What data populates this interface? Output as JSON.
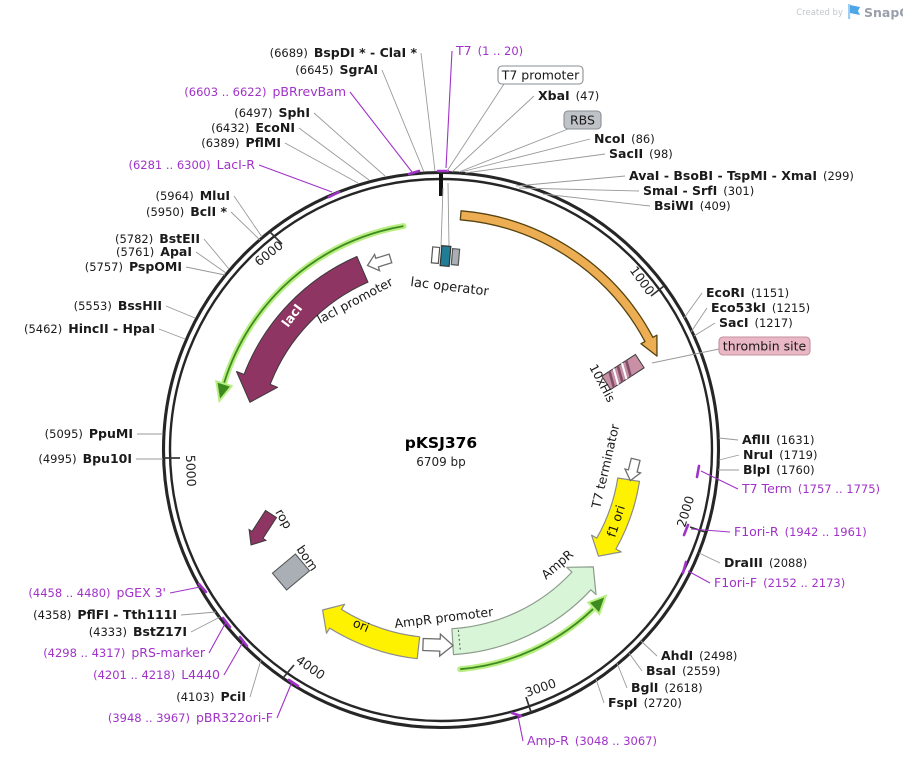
{
  "watermark": {
    "created_by": "Created by",
    "brand": "SnapGene"
  },
  "plasmid": {
    "name": "pKSJ376",
    "size_label": "6709 bp"
  },
  "colors": {
    "purple_primer": "#A032C8",
    "enzyme_text": "#1a1a1a",
    "leader": "#999999",
    "maroon": "#8E3563",
    "orange_fill": "#EDAE53",
    "orange_stroke": "#56430F",
    "yellow": "#FFF200",
    "yellow_stroke": "#8C8C8C",
    "mint_fill": "#D8F5D8",
    "mint_stroke": "#8C9C8C",
    "green_core": "#3D8B1F",
    "green_glow": "#B9EE83",
    "his_pink": "#C88FA5",
    "his_stripe": "#7E4E66",
    "thrombin_bg": "#EAB8C5",
    "thrombin_border": "#C48FA0",
    "rbs_bg": "#BFC3C7",
    "box_border": "#8A8F94",
    "gray_feature": "#A9AFB5",
    "ring": "#262626",
    "teal_box": "#1F7E95"
  },
  "ticks": [
    {
      "label": "1000"
    },
    {
      "label": "2000"
    },
    {
      "label": "3000"
    },
    {
      "label": "4000"
    },
    {
      "label": "5000"
    },
    {
      "label": "6000"
    }
  ],
  "boxes": [
    {
      "id": "t7_promoter",
      "label": "T7 promoter"
    },
    {
      "id": "rbs",
      "label": "RBS"
    },
    {
      "id": "thrombin",
      "label": "thrombin site"
    }
  ],
  "features": [
    {
      "id": "lac_operator",
      "label": "lac operator"
    },
    {
      "id": "laci_promoter",
      "label": "lacI promoter"
    },
    {
      "id": "laci",
      "label": "lacI"
    },
    {
      "id": "his",
      "label": "10xHis"
    },
    {
      "id": "t7_terminator",
      "label": "T7 terminator"
    },
    {
      "id": "f1_ori",
      "label": "f1 ori"
    },
    {
      "id": "ampr",
      "label": "AmpR"
    },
    {
      "id": "ampr_promoter",
      "label": "AmpR promoter"
    },
    {
      "id": "ori",
      "label": "ori"
    },
    {
      "id": "rop",
      "label": "rop"
    },
    {
      "id": "bom",
      "label": "bom"
    }
  ],
  "sites": [
    {
      "id": "bspdi",
      "pos": "(6689)",
      "name": "BspDI * - ClaI *",
      "kind": "enzyme",
      "side": "left"
    },
    {
      "id": "sgrai",
      "pos": "(6645)",
      "name": "SgrAI",
      "kind": "enzyme",
      "side": "left"
    },
    {
      "id": "pbrrevbam",
      "pos": "(6603 .. 6622)",
      "name": "pBRrevBam",
      "kind": "primer",
      "side": "left"
    },
    {
      "id": "sphi",
      "pos": "(6497)",
      "name": "SphI",
      "kind": "enzyme",
      "side": "left"
    },
    {
      "id": "econi",
      "pos": "(6432)",
      "name": "EcoNI",
      "kind": "enzyme",
      "side": "left"
    },
    {
      "id": "pflmi",
      "pos": "(6389)",
      "name": "PflMI",
      "kind": "enzyme",
      "side": "left"
    },
    {
      "id": "lacir",
      "pos": "(6281 .. 6300)",
      "name": "LacI-R",
      "kind": "primer",
      "side": "left"
    },
    {
      "id": "mlui",
      "pos": "(5964)",
      "name": "MluI",
      "kind": "enzyme",
      "side": "left"
    },
    {
      "id": "bcli",
      "pos": "(5950)",
      "name": "BclI *",
      "kind": "enzyme",
      "side": "left"
    },
    {
      "id": "bsteii",
      "pos": "(5782)",
      "name": "BstEII",
      "kind": "enzyme",
      "side": "left"
    },
    {
      "id": "apai",
      "pos": "(5761)",
      "name": "ApaI",
      "kind": "enzyme",
      "side": "left"
    },
    {
      "id": "pspomi",
      "pos": "(5757)",
      "name": "PspOMI",
      "kind": "enzyme",
      "side": "left"
    },
    {
      "id": "bsshii",
      "pos": "(5553)",
      "name": "BssHII",
      "kind": "enzyme",
      "side": "left"
    },
    {
      "id": "hincii",
      "pos": "(5462)",
      "name": "HincII - HpaI",
      "kind": "enzyme",
      "side": "left"
    },
    {
      "id": "ppumi",
      "pos": "(5095)",
      "name": "PpuMI",
      "kind": "enzyme",
      "side": "left"
    },
    {
      "id": "bpu10i",
      "pos": "(4995)",
      "name": "Bpu10I",
      "kind": "enzyme",
      "side": "left"
    },
    {
      "id": "pgex",
      "pos": "(4458 .. 4480)",
      "name": "pGEX 3'",
      "kind": "primer",
      "side": "left"
    },
    {
      "id": "pflfi",
      "pos": "(4358)",
      "name": "PflFI - Tth111I",
      "kind": "enzyme",
      "side": "left"
    },
    {
      "id": "bstz17i",
      "pos": "(4333)",
      "name": "BstZ17I",
      "kind": "enzyme",
      "side": "left"
    },
    {
      "id": "prs",
      "pos": "(4298 .. 4317)",
      "name": "pRS-marker",
      "kind": "primer",
      "side": "left"
    },
    {
      "id": "l4440",
      "pos": "(4201 .. 4218)",
      "name": "L4440",
      "kind": "primer",
      "side": "left"
    },
    {
      "id": "pcii",
      "pos": "(4103)",
      "name": "PciI",
      "kind": "enzyme",
      "side": "left"
    },
    {
      "id": "pbr322",
      "pos": "(3948 .. 3967)",
      "name": "pBR322ori-F",
      "kind": "primer",
      "side": "left"
    },
    {
      "id": "t7",
      "pos": "(1 .. 20)",
      "name": "T7",
      "kind": "primer",
      "side": "right"
    },
    {
      "id": "xbai",
      "pos": "(47)",
      "name": "XbaI",
      "kind": "enzyme",
      "side": "right"
    },
    {
      "id": "ncoi",
      "pos": "(86)",
      "name": "NcoI",
      "kind": "enzyme",
      "side": "right"
    },
    {
      "id": "sacii",
      "pos": "(98)",
      "name": "SacII",
      "kind": "enzyme",
      "side": "right"
    },
    {
      "id": "avai",
      "pos": "(299)",
      "name": "AvaI - BsoBI - TspMI - XmaI",
      "kind": "enzyme",
      "side": "right"
    },
    {
      "id": "smai",
      "pos": "(301)",
      "name": "SmaI - SrfI",
      "kind": "enzyme",
      "side": "right"
    },
    {
      "id": "bsiwi",
      "pos": "(409)",
      "name": "BsiWI",
      "kind": "enzyme",
      "side": "right"
    },
    {
      "id": "ecori",
      "pos": "(1151)",
      "name": "EcoRI",
      "kind": "enzyme",
      "side": "right"
    },
    {
      "id": "eco53ki",
      "pos": "(1215)",
      "name": "Eco53kI",
      "kind": "enzyme",
      "side": "right"
    },
    {
      "id": "saci",
      "pos": "(1217)",
      "name": "SacI",
      "kind": "enzyme",
      "side": "right"
    },
    {
      "id": "aflii",
      "pos": "(1631)",
      "name": "AflII",
      "kind": "enzyme",
      "side": "right"
    },
    {
      "id": "nrui",
      "pos": "(1719)",
      "name": "NruI",
      "kind": "enzyme",
      "side": "right"
    },
    {
      "id": "blpi",
      "pos": "(1760)",
      "name": "BlpI",
      "kind": "enzyme",
      "side": "right"
    },
    {
      "id": "t7term",
      "pos": "(1757 .. 1775)",
      "name": "T7 Term",
      "kind": "primer",
      "side": "right"
    },
    {
      "id": "f1orir",
      "pos": "(1942 .. 1961)",
      "name": "F1ori-R",
      "kind": "primer",
      "side": "right"
    },
    {
      "id": "draiii",
      "pos": "(2088)",
      "name": "DraIII",
      "kind": "enzyme",
      "side": "right"
    },
    {
      "id": "f1orif",
      "pos": "(2152 .. 2173)",
      "name": "F1ori-F",
      "kind": "primer",
      "side": "right"
    },
    {
      "id": "ahdi",
      "pos": "(2498)",
      "name": "AhdI",
      "kind": "enzyme",
      "side": "right"
    },
    {
      "id": "bsai",
      "pos": "(2559)",
      "name": "BsaI",
      "kind": "enzyme",
      "side": "right"
    },
    {
      "id": "bgli",
      "pos": "(2618)",
      "name": "BglI",
      "kind": "enzyme",
      "side": "right"
    },
    {
      "id": "fspi",
      "pos": "(2720)",
      "name": "FspI",
      "kind": "enzyme",
      "side": "right"
    },
    {
      "id": "ampr_r",
      "pos": "(3048 .. 3067)",
      "name": "Amp-R",
      "kind": "primer",
      "side": "right"
    }
  ]
}
